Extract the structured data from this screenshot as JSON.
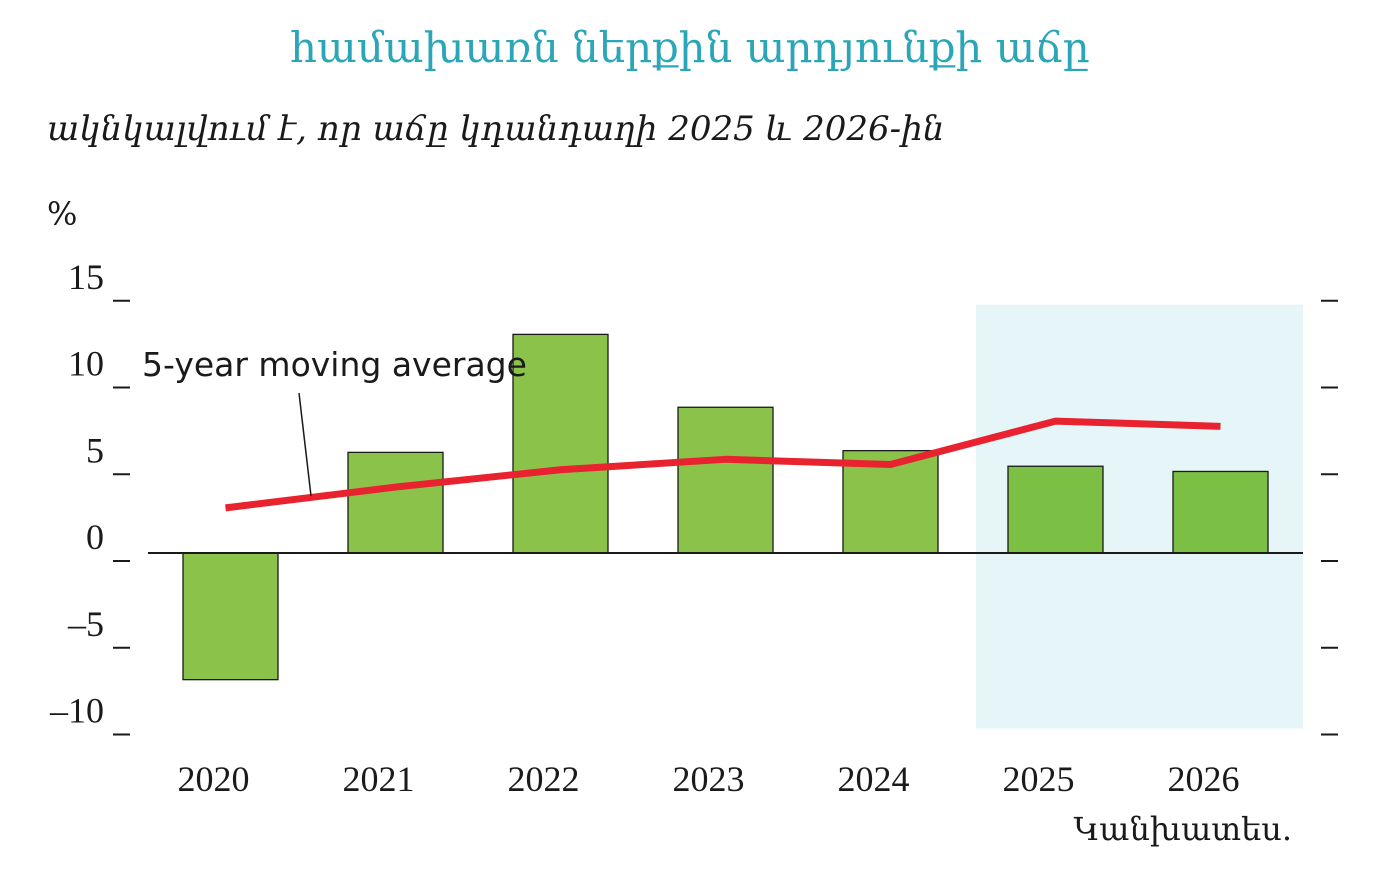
{
  "chart_data": {
    "type": "bar",
    "title": "համախառն ներքին արդյունքի աճը",
    "subtitle": "ակնկալվում է, որ աճը կդանդաղի 2025 և 2026-ին",
    "ylabel": "%",
    "ylim": [
      -10,
      15
    ],
    "yticks": [
      15,
      10,
      5,
      0,
      -5,
      -10
    ],
    "ytick_labels": [
      "15",
      "10",
      "5",
      "0",
      "–5",
      "–10"
    ],
    "categories": [
      "2020",
      "2021",
      "2022",
      "2023",
      "2024",
      "2025",
      "2026"
    ],
    "series": [
      {
        "type": "bar",
        "values": [
          -7.3,
          5.8,
          12.6,
          8.4,
          5.9,
          5.0,
          4.7
        ],
        "colors": [
          "#8bc34a",
          "#8bc34a",
          "#8bc34a",
          "#8bc34a",
          "#8bc34a",
          "#7bbf45",
          "#7bbf45"
        ]
      },
      {
        "type": "line",
        "name": "5-year moving average",
        "values": [
          2.6,
          3.8,
          4.8,
          5.4,
          5.1,
          7.6,
          7.3
        ],
        "color": "#e8222e"
      }
    ],
    "annotations": [
      {
        "text": "5-year moving average",
        "points_to": "line"
      }
    ],
    "forecast": {
      "label": "Կանխատես.",
      "from_category": "2025",
      "to_category": "2026",
      "shade_color": "#e6f6f8"
    },
    "grid": false,
    "legend": "none"
  }
}
